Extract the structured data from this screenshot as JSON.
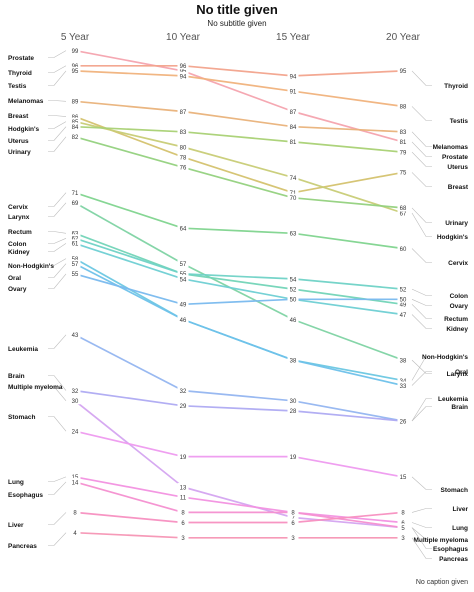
{
  "title": "No title given",
  "subtitle": "No subtitle given",
  "caption": "No caption given",
  "chart_data": {
    "type": "line",
    "title": "No title given",
    "subtitle": "No subtitle given",
    "caption": "No caption given",
    "categories": [
      "5 Year",
      "10 Year",
      "15 Year",
      "20 Year"
    ],
    "series": [
      {
        "name": "Prostate",
        "values": [
          99,
          95,
          87,
          81
        ],
        "color": "#f4a3ae"
      },
      {
        "name": "Thyroid",
        "values": [
          96,
          96,
          94,
          95
        ],
        "color": "#f2a38c"
      },
      {
        "name": "Testis",
        "values": [
          95,
          94,
          91,
          88
        ],
        "color": "#f0b27c"
      },
      {
        "name": "Melanomas",
        "values": [
          89,
          87,
          84,
          83
        ],
        "color": "#e9b27a"
      },
      {
        "name": "Breast",
        "values": [
          86,
          78,
          71,
          75
        ],
        "color": "#d4c26e"
      },
      {
        "name": "Hodgkin's",
        "values": [
          85,
          80,
          74,
          67
        ],
        "color": "#c8cc76"
      },
      {
        "name": "Uterus",
        "values": [
          84,
          83,
          81,
          79
        ],
        "color": "#a9d174"
      },
      {
        "name": "Urinary",
        "values": [
          82,
          76,
          70,
          68
        ],
        "color": "#94d17e"
      },
      {
        "name": "Cervix",
        "values": [
          71,
          64,
          63,
          60
        ],
        "color": "#7fd48e"
      },
      {
        "name": "Larynx",
        "values": [
          69,
          57,
          46,
          38
        ],
        "color": "#7ed3a3"
      },
      {
        "name": "Rectum",
        "values": [
          63,
          55,
          52,
          49
        ],
        "color": "#72d4b7"
      },
      {
        "name": "Colon",
        "values": [
          62,
          55,
          54,
          52
        ],
        "color": "#6fd2c6"
      },
      {
        "name": "Kidney",
        "values": [
          61,
          54,
          50,
          47
        ],
        "color": "#6ecfd3"
      },
      {
        "name": "Non-Hodgkin's",
        "values": [
          58,
          46,
          38,
          34
        ],
        "color": "#6cc7e2"
      },
      {
        "name": "Oral",
        "values": [
          57,
          46,
          38,
          33
        ],
        "color": "#6ec1ea"
      },
      {
        "name": "Ovary",
        "values": [
          55,
          49,
          50,
          50
        ],
        "color": "#79b9ee"
      },
      {
        "name": "Leukemia",
        "values": [
          43,
          32,
          30,
          26
        ],
        "color": "#93b5f0"
      },
      {
        "name": "Brain",
        "values": [
          32,
          29,
          28,
          26
        ],
        "color": "#aeaaf2"
      },
      {
        "name": "Multiple myeloma",
        "values": [
          30,
          13,
          7,
          5
        ],
        "color": "#d4a4f0"
      },
      {
        "name": "Stomach",
        "values": [
          24,
          19,
          19,
          15
        ],
        "color": "#ee9aef"
      },
      {
        "name": "Lung",
        "values": [
          15,
          11,
          8,
          6
        ],
        "color": "#f291e0"
      },
      {
        "name": "Esophagus",
        "values": [
          14,
          8,
          8,
          5
        ],
        "color": "#f48fd0"
      },
      {
        "name": "Liver",
        "values": [
          8,
          6,
          6,
          8
        ],
        "color": "#f78fc0"
      },
      {
        "name": "Pancreas",
        "values": [
          4,
          3,
          3,
          3
        ],
        "color": "#f595b4"
      }
    ],
    "left_labels": [
      "Prostate",
      "Thyroid",
      "Testis",
      "Melanomas",
      "Breast",
      "Hodgkin's",
      "Uterus",
      "Urinary",
      "Cervix",
      "Larynx",
      "Rectum",
      "Colon",
      "Kidney",
      "Non-Hodgkin's",
      "Oral",
      "Ovary",
      "Leukemia",
      "Brain",
      "Multiple myeloma",
      "Stomach",
      "Lung",
      "Esophagus",
      "Liver",
      "Pancreas"
    ],
    "right_labels": [
      "Thyroid",
      "Testis",
      "Melanomas",
      "Prostate",
      "Uterus",
      "Breast",
      "Urinary",
      "Hodgkin's",
      "Cervix",
      "Colon",
      "Ovary",
      "Rectum",
      "Kidney",
      "Larynx",
      "Non-Hodgkin's",
      "Oral",
      "Leukemia",
      "Brain",
      "Stomach",
      "Liver",
      "Lung",
      "Multiple myeloma",
      "Esophagus",
      "Pancreas"
    ],
    "grid": false,
    "legend": "none"
  }
}
